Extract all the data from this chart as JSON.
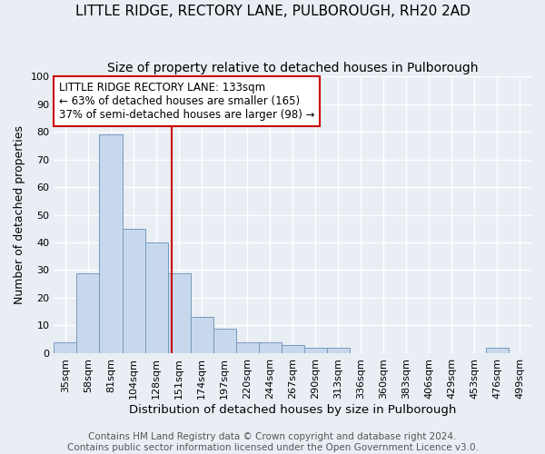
{
  "title": "LITTLE RIDGE, RECTORY LANE, PULBOROUGH, RH20 2AD",
  "subtitle": "Size of property relative to detached houses in Pulborough",
  "xlabel": "Distribution of detached houses by size in Pulborough",
  "ylabel": "Number of detached properties",
  "bar_labels": [
    "35sqm",
    "58sqm",
    "81sqm",
    "104sqm",
    "128sqm",
    "151sqm",
    "174sqm",
    "197sqm",
    "220sqm",
    "244sqm",
    "267sqm",
    "290sqm",
    "313sqm",
    "336sqm",
    "360sqm",
    "383sqm",
    "406sqm",
    "429sqm",
    "453sqm",
    "476sqm",
    "499sqm"
  ],
  "bar_values": [
    4,
    29,
    79,
    45,
    40,
    29,
    13,
    9,
    4,
    4,
    3,
    2,
    2,
    0,
    0,
    0,
    0,
    0,
    0,
    2,
    0
  ],
  "bar_color": "#c8d8ec",
  "bar_edge_color": "#7799bb",
  "vline_x": 4.68,
  "vline_color": "#cc0000",
  "annotation_text_line1": "LITTLE RIDGE RECTORY LANE: 133sqm",
  "annotation_text_line2": "← 63% of detached houses are smaller (165)",
  "annotation_text_line3": "37% of semi-detached houses are larger (98) →",
  "annotation_box_color": "#ffffff",
  "annotation_border_color": "#cc0000",
  "ylim": [
    0,
    100
  ],
  "yticks": [
    0,
    10,
    20,
    30,
    40,
    50,
    60,
    70,
    80,
    90,
    100
  ],
  "bg_color": "#e8eef4",
  "grid_color": "#ffffff",
  "footer_line1": "Contains HM Land Registry data © Crown copyright and database right 2024.",
  "footer_line2": "Contains public sector information licensed under the Open Government Licence v3.0.",
  "title_fontsize": 11,
  "subtitle_fontsize": 10,
  "xlabel_fontsize": 9.5,
  "ylabel_fontsize": 9,
  "tick_fontsize": 8,
  "annotation_fontsize": 8.5,
  "footer_fontsize": 7.5
}
